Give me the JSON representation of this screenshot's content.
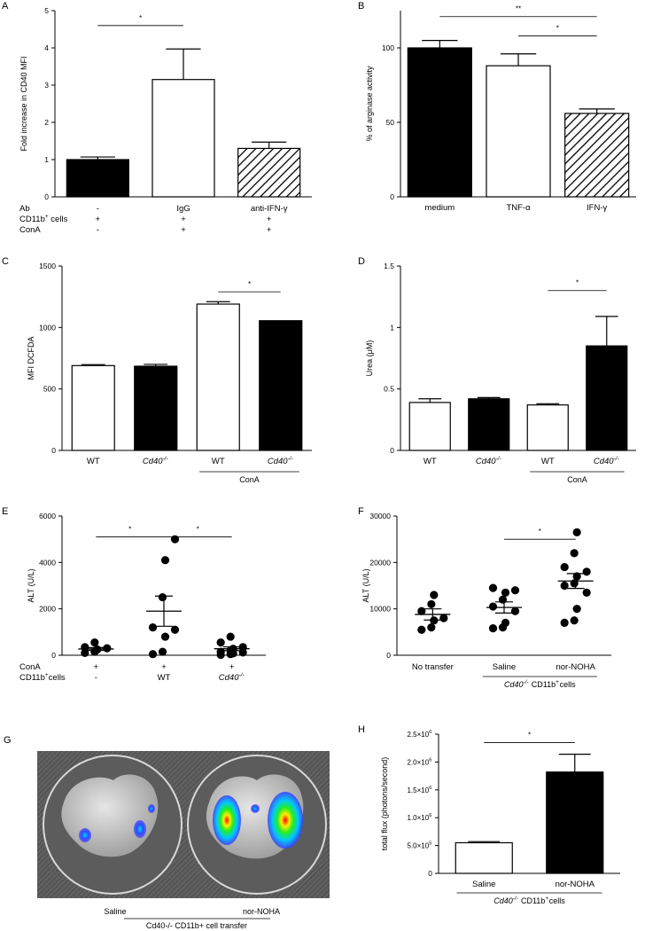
{
  "chart_data": [
    {
      "panel": "A",
      "type": "bar",
      "ylabel": "Fold increase in CD40 MFI",
      "ylim": [
        0,
        5
      ],
      "yticks": [
        0,
        1,
        2,
        3,
        4,
        5
      ],
      "categories": [
        "",
        "",
        ""
      ],
      "values": [
        1.0,
        3.15,
        1.3
      ],
      "errors": [
        0.07,
        0.82,
        0.17
      ],
      "fills": [
        "black",
        "white",
        "hatch"
      ],
      "sig": [
        {
          "from": 0,
          "to": 1,
          "label": "*",
          "y": 4.6
        }
      ],
      "rows": [
        {
          "label": "Ab",
          "cells": [
            "-",
            "IgG",
            "anti-IFN-γ"
          ]
        },
        {
          "label": "CD11b",
          "sup": "+",
          "suffix": " cells",
          "cells": [
            "+",
            "+",
            "+"
          ]
        },
        {
          "label": "ConA",
          "cells": [
            "-",
            "+",
            "+"
          ]
        }
      ]
    },
    {
      "panel": "B",
      "type": "bar",
      "ylabel": "% of arginase activity",
      "ylim": [
        0,
        125
      ],
      "yticks": [
        0,
        50,
        100
      ],
      "categories": [
        "medium",
        "TNF-α",
        "IFN-γ"
      ],
      "values": [
        100,
        88,
        56
      ],
      "errors": [
        5,
        8,
        3
      ],
      "fills": [
        "black",
        "white",
        "hatch"
      ],
      "sig": [
        {
          "from": 0,
          "to": 2,
          "label": "**",
          "y": 121
        },
        {
          "from": 1,
          "to": 2,
          "label": "*",
          "y": 108
        }
      ]
    },
    {
      "panel": "C",
      "type": "bar",
      "ylabel": "MFI DCFDA",
      "ylim": [
        0,
        1500
      ],
      "yticks": [
        0,
        500,
        1000,
        1500
      ],
      "categories": [
        "WT",
        "Cd40-/-",
        "WT",
        "Cd40-/-"
      ],
      "values": [
        690,
        685,
        1190,
        1055
      ],
      "errors": [
        8,
        15,
        20,
        0
      ],
      "fills": [
        "white",
        "black",
        "white",
        "black"
      ],
      "sig": [
        {
          "from": 2,
          "to": 3,
          "label": "*",
          "y": 1290
        }
      ],
      "group": {
        "label": "ConA",
        "from": 2,
        "to": 3
      }
    },
    {
      "panel": "D",
      "type": "bar",
      "ylabel": "Urea (μM)",
      "ylim": [
        0,
        1.5
      ],
      "yticks": [
        0.0,
        0.5,
        1.0,
        1.5
      ],
      "categories": [
        "WT",
        "Cd40-/-",
        "WT",
        "Cd40-/-"
      ],
      "values": [
        0.39,
        0.42,
        0.37,
        0.85
      ],
      "errors": [
        0.03,
        0.01,
        0.01,
        0.24
      ],
      "fills": [
        "white",
        "black",
        "white",
        "black"
      ],
      "sig": [
        {
          "from": 2,
          "to": 3,
          "label": "*",
          "y": 1.3
        }
      ],
      "group": {
        "label": "ConA",
        "from": 2,
        "to": 3
      }
    },
    {
      "panel": "E",
      "type": "scatter",
      "ylabel": "ALT (U/L)",
      "ylim": [
        0,
        6000
      ],
      "yticks": [
        0,
        2000,
        4000,
        6000
      ],
      "groups": [
        {
          "points": [
            100,
            150,
            250,
            300,
            350,
            550
          ],
          "mean": 270,
          "sem": 60
        },
        {
          "points": [
            50,
            150,
            800,
            1100,
            1200,
            2500,
            4100,
            5000
          ],
          "mean": 1900,
          "sem": 650
        },
        {
          "points": [
            20,
            50,
            80,
            120,
            150,
            200,
            280,
            350,
            550,
            800
          ],
          "mean": 280,
          "sem": 80
        }
      ],
      "sig": [
        {
          "from": 0,
          "to": 1,
          "label": "*",
          "y": 5100
        },
        {
          "from": 1,
          "to": 2,
          "label": "*",
          "y": 5100
        }
      ],
      "rows": [
        {
          "label": "ConA",
          "cells": [
            "+",
            "+",
            "+"
          ]
        },
        {
          "label": "CD11b",
          "sup": "+",
          "suffix": "cells",
          "cells": [
            "-",
            "WT",
            "Cd40-/-"
          ]
        }
      ]
    },
    {
      "panel": "F",
      "type": "scatter",
      "ylabel": "ALT (U/L)",
      "ylim": [
        0,
        30000
      ],
      "yticks": [
        0,
        10000,
        20000,
        30000
      ],
      "categories": [
        "No transfer",
        "Saline",
        "nor-NOHA"
      ],
      "groups": [
        {
          "points": [
            5500,
            6000,
            7500,
            8000,
            9500,
            11000,
            13000
          ],
          "mean": 8800,
          "sem": 1200
        },
        {
          "points": [
            5800,
            6000,
            7000,
            9500,
            10500,
            12000,
            13500,
            14000,
            14500
          ],
          "mean": 10300,
          "sem": 1200
        },
        {
          "points": [
            7000,
            7500,
            10000,
            13500,
            15000,
            15500,
            17000,
            18000,
            19000,
            22000,
            26500
          ],
          "mean": 16000,
          "sem": 1600
        }
      ],
      "sig": [
        {
          "from": 1,
          "to": 2,
          "label": "*",
          "y": 25000
        }
      ],
      "group": {
        "label": "Cd40-/- CD11b+cells",
        "from": 1,
        "to": 2
      }
    },
    {
      "panel": "H",
      "type": "bar",
      "ylabel": "total flux (photons/second)",
      "ylim": [
        0,
        2500000
      ],
      "yticks": [
        {
          "v": 0,
          "t": "0"
        },
        {
          "v": 500000,
          "t": "5.0×10^5"
        },
        {
          "v": 1000000,
          "t": "1.0×10^6"
        },
        {
          "v": 1500000,
          "t": "1.5×10^6"
        },
        {
          "v": 2000000,
          "t": "2.0×10^6"
        },
        {
          "v": 2500000,
          "t": "2.5×10^6"
        }
      ],
      "categories": [
        "Saline",
        "nor-NOHA"
      ],
      "values": [
        550000,
        1820000
      ],
      "errors": [
        20000,
        320000
      ],
      "fills": [
        "white",
        "black"
      ],
      "sig": [
        {
          "from": 0,
          "to": 1,
          "label": "*",
          "y": 2350000
        }
      ],
      "group": {
        "label": "Cd40-/- CD11b+cells",
        "from": 0,
        "to": 1
      }
    }
  ],
  "panel_g": {
    "label": "G",
    "left_label": "Saline",
    "right_label": "nor-NOHA",
    "group_label": "Cd40-/- CD11b+ cell transfer"
  }
}
